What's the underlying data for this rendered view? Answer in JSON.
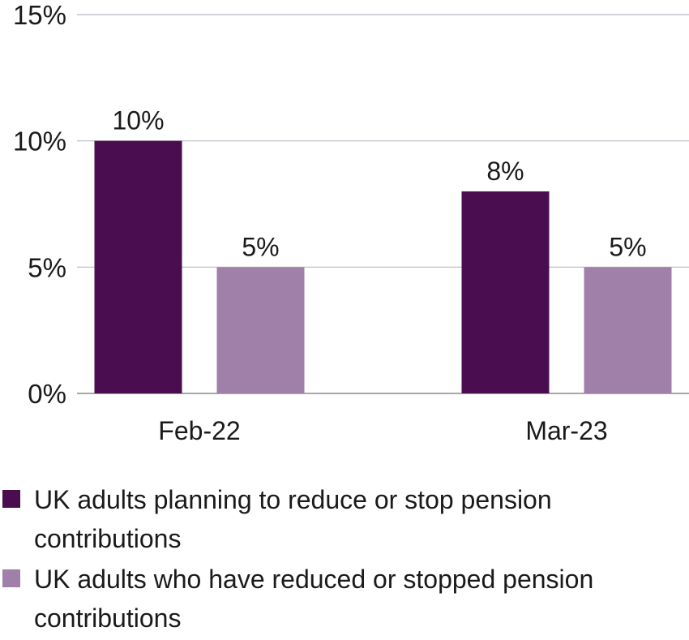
{
  "chart_data": {
    "type": "bar",
    "categories": [
      "Feb-22",
      "Mar-23"
    ],
    "series": [
      {
        "name": "UK adults planning to reduce or stop pension contributions",
        "values": [
          10,
          8
        ],
        "color": "#4a0d4f"
      },
      {
        "name": "UK adults who have reduced or stopped pension contributions",
        "values": [
          5,
          5
        ],
        "color": "#a07fa8"
      }
    ],
    "data_labels": [
      [
        "10%",
        "8%"
      ],
      [
        "5%",
        "5%"
      ]
    ],
    "yticks": [
      "0%",
      "5%",
      "10%",
      "15%"
    ],
    "ytick_values": [
      0,
      5,
      10,
      15
    ],
    "ylim": [
      0,
      15
    ],
    "grid": true,
    "legend_position": "bottom",
    "title": "",
    "xlabel": "",
    "ylabel": ""
  }
}
